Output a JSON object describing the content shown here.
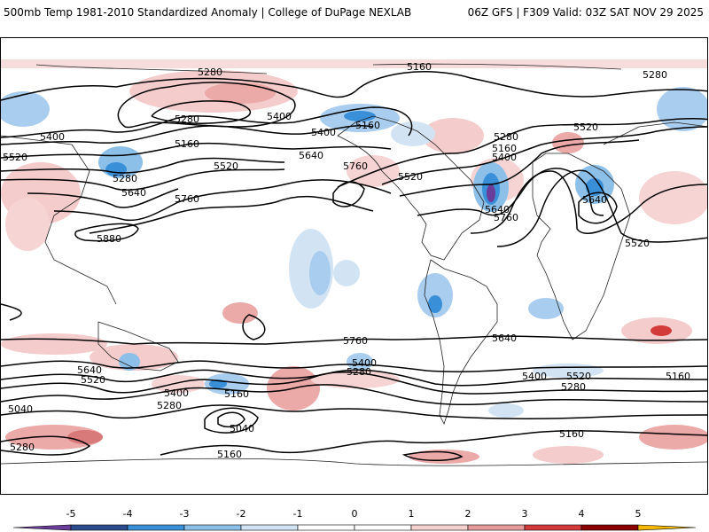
{
  "header": {
    "left_title": "500mb Temp 1981-2010 Standardized Anomaly | College of DuPage NEXLAB",
    "right_title": "06Z GFS | F309 Valid: 03Z SAT NOV 29 2025"
  },
  "map": {
    "variable": "500mb height contours (dam) with standardized temperature anomaly shading",
    "contour_labels": [
      "5280",
      "5160",
      "5280",
      "5280",
      "5400",
      "5160",
      "5400",
      "5160",
      "5520",
      "5520",
      "5640",
      "5280",
      "5640",
      "5760",
      "5400",
      "5520",
      "5280",
      "5880",
      "5160",
      "5760",
      "5520",
      "5640",
      "5400",
      "5520",
      "5640",
      "5760",
      "5400",
      "5280",
      "5760",
      "5640",
      "5640",
      "5520",
      "5160",
      "5400",
      "5520",
      "5280",
      "5160",
      "5040",
      "5400",
      "5280",
      "5040",
      "5160",
      "5280",
      "5160"
    ]
  },
  "colorbar": {
    "tick_labels": [
      "-5",
      "-4",
      "-3",
      "-2",
      "-1",
      "0",
      "1",
      "2",
      "3",
      "4",
      "5"
    ],
    "colors": [
      "#6a3d9a",
      "#2b4c8c",
      "#3a8fd9",
      "#8cc0e8",
      "#d2e4f4",
      "#ffffff",
      "#ffffff",
      "#f4d0cf",
      "#e59b9a",
      "#d33a3a",
      "#8b0000",
      "#f5b800"
    ]
  }
}
